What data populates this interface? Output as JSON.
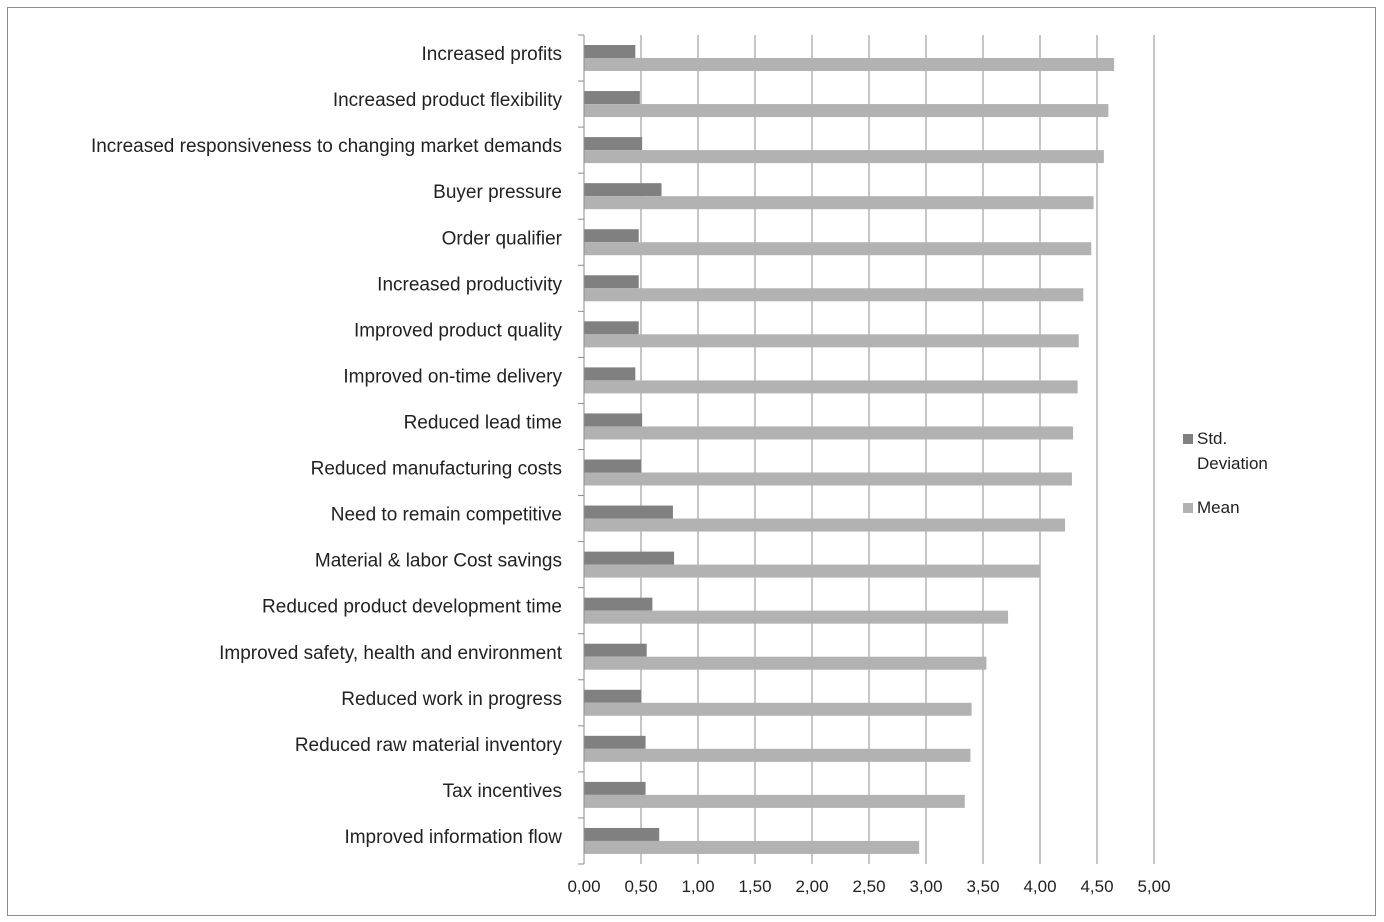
{
  "chart_data": {
    "type": "bar",
    "orientation": "horizontal",
    "categories": [
      "Increased profits",
      "Increased product flexibility",
      "Increased responsiveness to changing market demands",
      "Buyer pressure",
      "Order qualifier",
      "Increased productivity",
      "Improved product quality",
      "Improved on-time delivery",
      "Reduced lead time",
      "Reduced manufacturing costs",
      "Need to remain competitive",
      "Material & labor Cost savings",
      "Reduced product development time",
      "Improved safety, health and environment",
      "Reduced work in progress",
      "Reduced raw material inventory",
      "Tax incentives",
      "Improved information flow"
    ],
    "series": [
      {
        "name": "Std. Deviation",
        "color": "#808080",
        "values": [
          0.45,
          0.49,
          0.51,
          0.68,
          0.48,
          0.48,
          0.48,
          0.45,
          0.51,
          0.5,
          0.78,
          0.79,
          0.6,
          0.55,
          0.5,
          0.54,
          0.54,
          0.66
        ]
      },
      {
        "name": "Mean",
        "color": "#b2b2b2",
        "values": [
          4.65,
          4.6,
          4.56,
          4.47,
          4.45,
          4.38,
          4.34,
          4.33,
          4.29,
          4.28,
          4.22,
          4.0,
          3.72,
          3.53,
          3.4,
          3.39,
          3.34,
          2.94
        ]
      }
    ],
    "xlim": [
      0,
      5
    ],
    "xticks": [
      "0,00",
      "0,50",
      "1,00",
      "1,50",
      "2,00",
      "2,50",
      "3,00",
      "3,50",
      "4,00",
      "4,50",
      "5,00"
    ],
    "grid": true,
    "legend_position": "right"
  }
}
